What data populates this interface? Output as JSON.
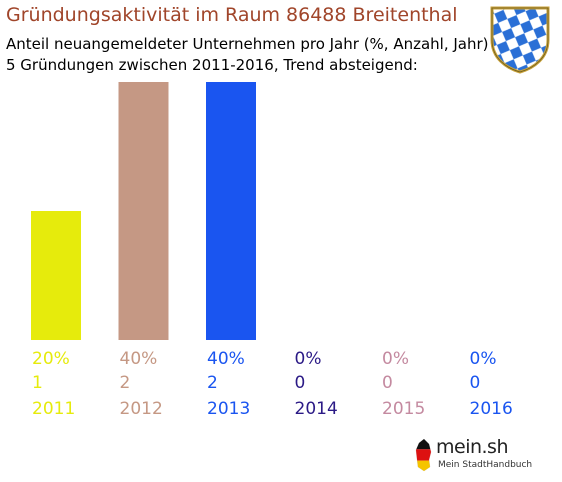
{
  "header": {
    "title": "Gründungsaktivität im Raum 86488 Breitenthal",
    "subtitle_line1": "Anteil neuangemeldeter Unternehmen pro Jahr (%, Anzahl, Jahr)",
    "subtitle_line2": "5 Gründungen zwischen 2011-2016, Trend absteigend:"
  },
  "crest": {
    "icon": "bavaria-coat-of-arms-icon",
    "colors": {
      "blue": "#2a6fd6",
      "white": "#ffffff",
      "gold": "#c8a23a"
    }
  },
  "chart_data": {
    "type": "bar",
    "categories": [
      "2011",
      "2012",
      "2013",
      "2014",
      "2015",
      "2016"
    ],
    "percent_labels": [
      "20%",
      "40%",
      "40%",
      "0%",
      "0%",
      "0%"
    ],
    "count_labels": [
      "1",
      "2",
      "2",
      "0",
      "0",
      "0"
    ],
    "values": [
      20,
      40,
      40,
      0,
      0,
      0
    ],
    "counts": [
      1,
      2,
      2,
      0,
      0,
      0
    ],
    "colors": [
      "#e6eb0c",
      "#c59884",
      "#1a55f0",
      "#2b1a86",
      "#c48aa0",
      "#1a55f0"
    ],
    "ylim": [
      0,
      40
    ],
    "grid": false
  },
  "footer": {
    "logo_name": "mein.sh",
    "logo_tagline": "Mein StadtHandbuch",
    "logo_icon": "germany-flag-icon"
  }
}
